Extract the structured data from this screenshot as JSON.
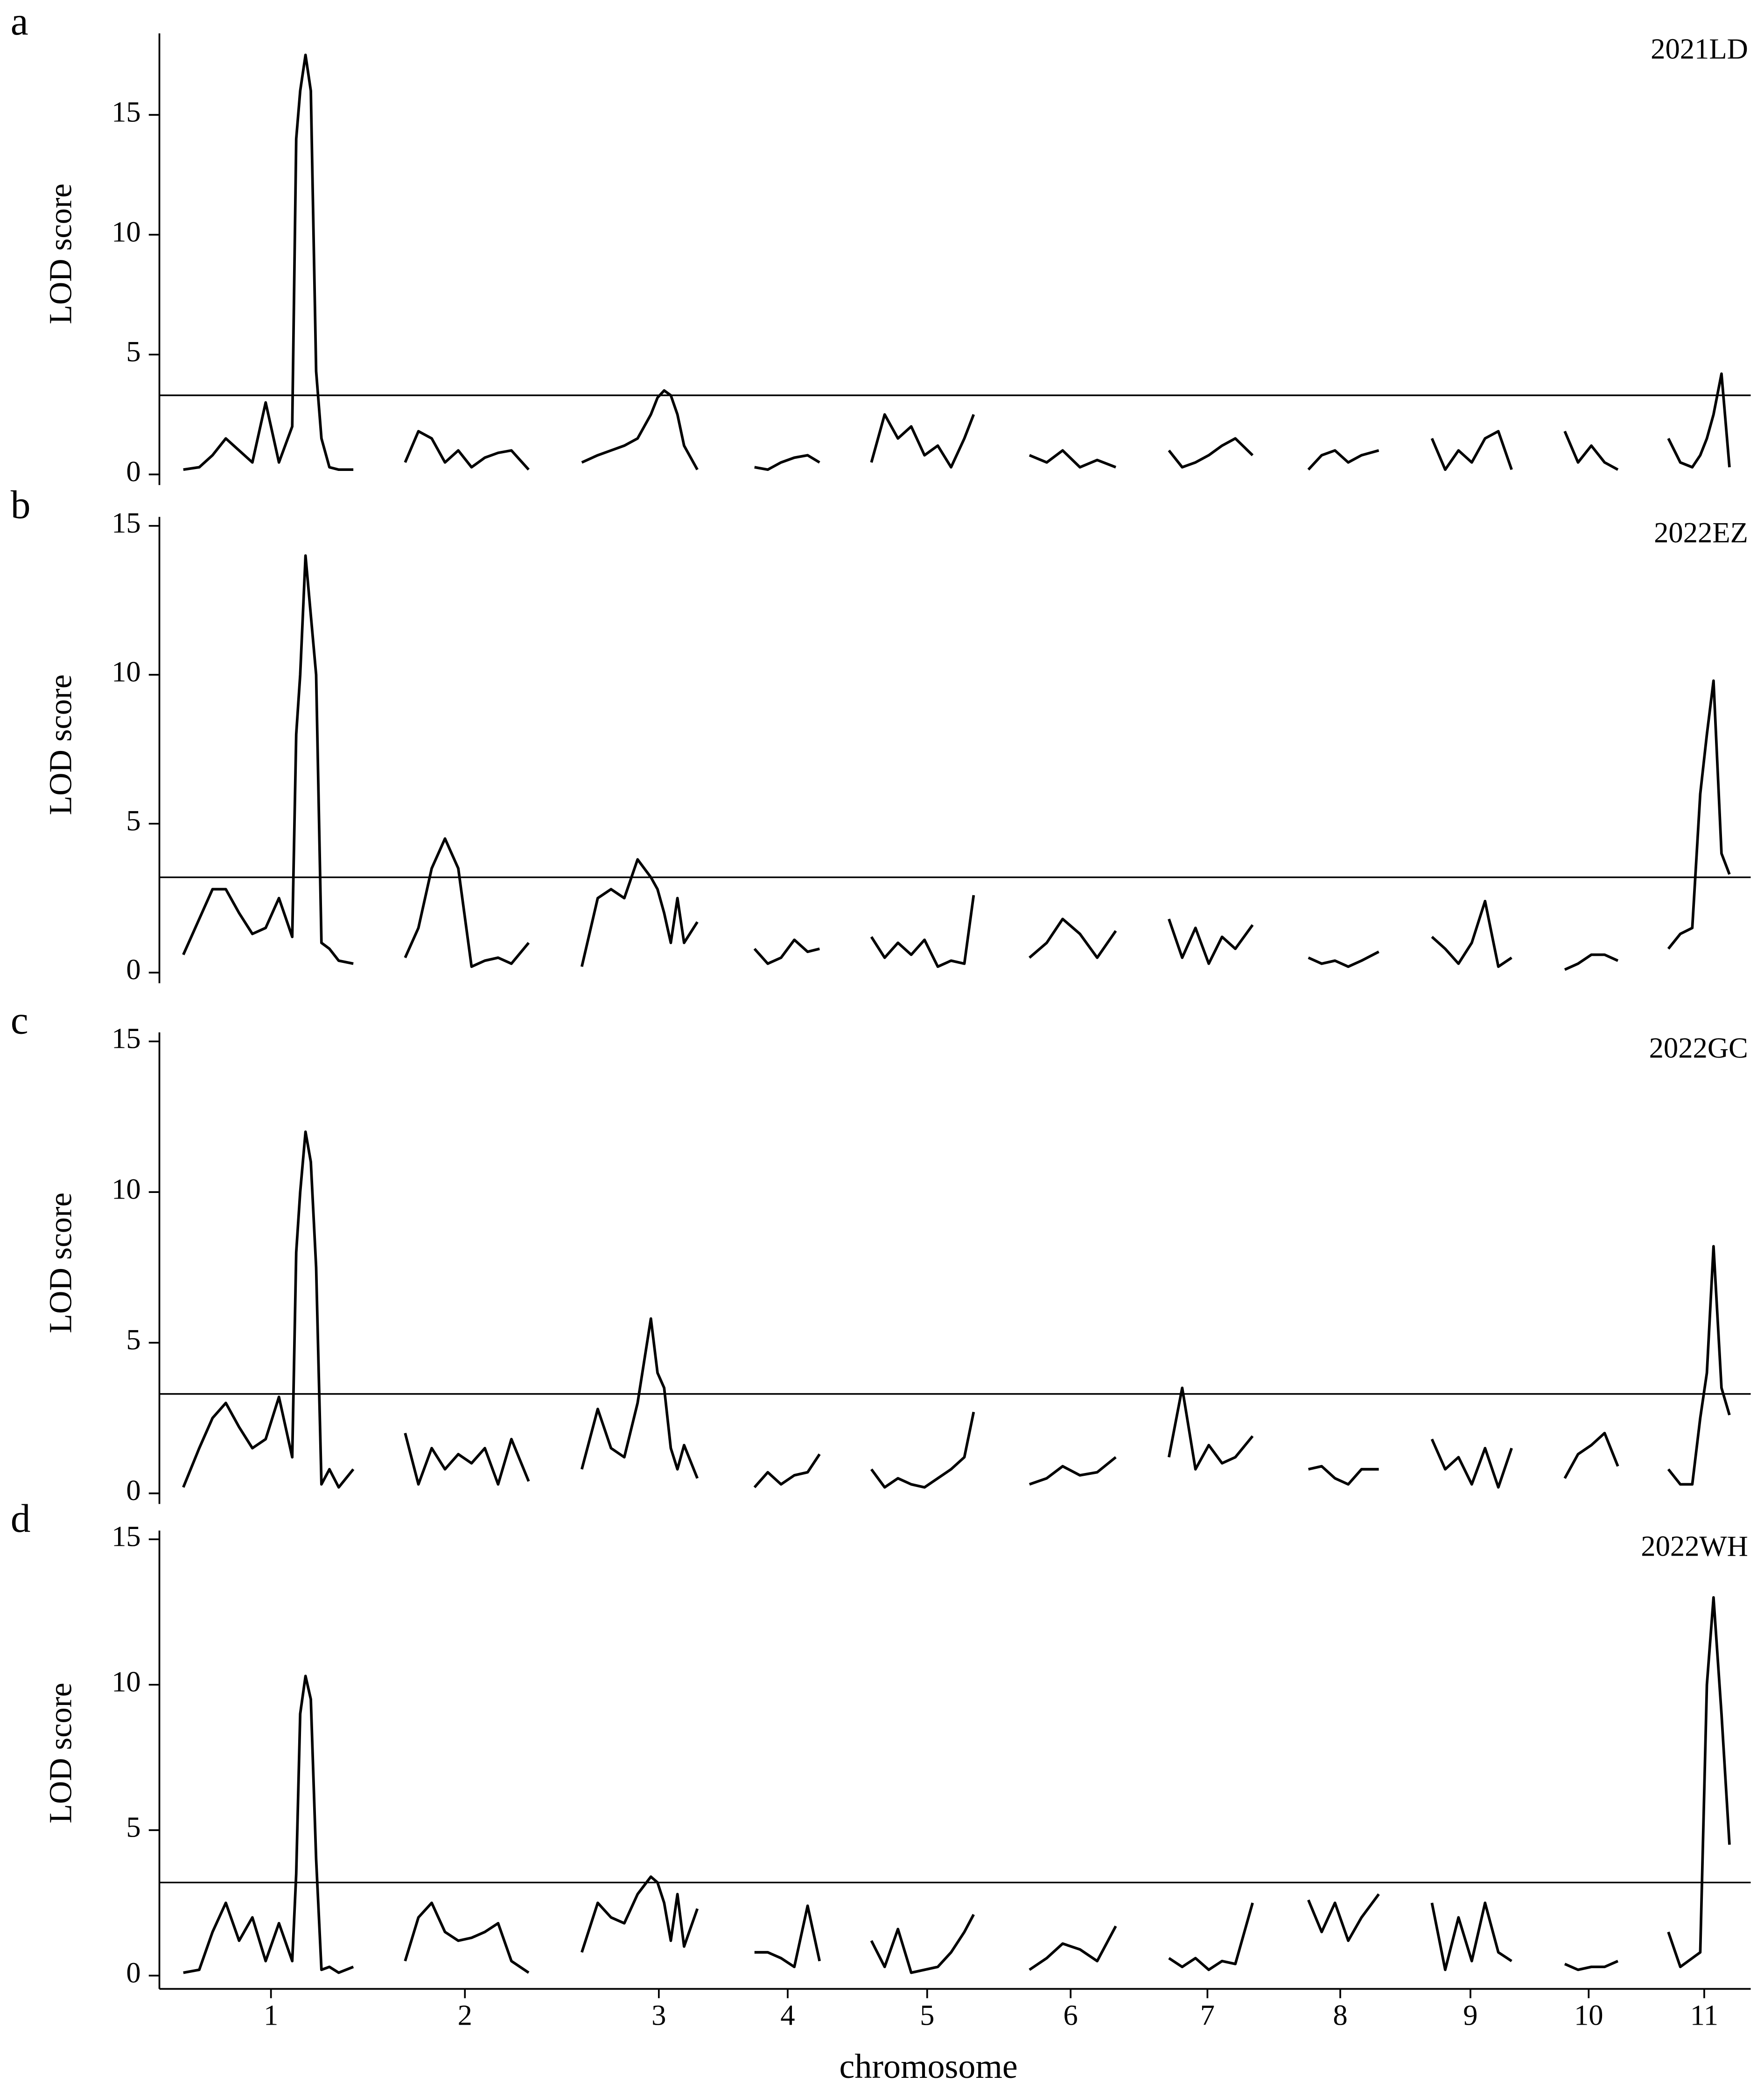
{
  "chart_data": [
    {
      "type": "line",
      "panel_label": "a",
      "title": "2021LD",
      "ylabel": "LOD score",
      "color": "#000000",
      "x": [
        1.8,
        3,
        4,
        5,
        6,
        7,
        8,
        9,
        10,
        10.3,
        10.6,
        11,
        11.4,
        11.8,
        12.2,
        12.8,
        13.5,
        14.6,
        null,
        18.5,
        19.5,
        20.5,
        21.5,
        22.5,
        23.5,
        24.5,
        25.5,
        26.5,
        27.8,
        null,
        31.8,
        33,
        34,
        35,
        36,
        37,
        37.5,
        38,
        38.5,
        39,
        39.5,
        40.5,
        null,
        44.8,
        45.8,
        46.8,
        47.8,
        48.8,
        49.7,
        null,
        53.6,
        54.6,
        55.6,
        56.6,
        57.6,
        58.6,
        59.6,
        60.6,
        61.3,
        null,
        65.5,
        66.8,
        68,
        69.3,
        70.6,
        72,
        null,
        76,
        77,
        78,
        79,
        80,
        81,
        82.3,
        null,
        86.5,
        87.5,
        88.5,
        89.5,
        90.5,
        91.8,
        null,
        95.8,
        96.8,
        97.8,
        98.8,
        99.8,
        100.8,
        101.8,
        null,
        105.8,
        106.8,
        107.8,
        108.8,
        109.8,
        null,
        113.6,
        114.5,
        115.4,
        116,
        116.5,
        117,
        117.6,
        118.2
      ],
      "values": [
        0.2,
        0.3,
        0.8,
        1.5,
        1,
        0.5,
        3,
        0.5,
        2,
        14,
        16,
        17.5,
        16,
        4.3,
        1.5,
        0.3,
        0.2,
        0.2,
        null,
        0.5,
        1.8,
        1.5,
        0.5,
        1,
        0.3,
        0.7,
        0.9,
        1,
        0.2,
        null,
        0.5,
        0.8,
        1,
        1.2,
        1.5,
        2.5,
        3.2,
        3.5,
        3.3,
        2.5,
        1.2,
        0.2,
        null,
        0.3,
        0.2,
        0.5,
        0.7,
        0.8,
        0.5,
        null,
        0.5,
        2.5,
        1.5,
        2,
        0.8,
        1.2,
        0.3,
        1.5,
        2.5,
        null,
        0.8,
        0.5,
        1,
        0.3,
        0.6,
        0.3,
        null,
        1,
        0.3,
        0.5,
        0.8,
        1.2,
        1.5,
        0.8,
        null,
        0.2,
        0.8,
        1,
        0.5,
        0.8,
        1,
        null,
        1.5,
        0.2,
        1,
        0.5,
        1.5,
        1.8,
        0.2,
        null,
        1.8,
        0.5,
        1.2,
        0.5,
        0.2,
        null,
        1.5,
        0.5,
        0.3,
        0.8,
        1.5,
        2.5,
        4.2,
        0.3
      ],
      "threshold": 3.3,
      "xlim": [
        0,
        119.8
      ],
      "ylim": [
        0,
        18.4
      ],
      "yticks": [
        0,
        5,
        10,
        15
      ]
    },
    {
      "type": "line",
      "panel_label": "b",
      "title": "2022EZ",
      "ylabel": "LOD score",
      "color": "#000000",
      "x": [
        1.8,
        3,
        4,
        5,
        6,
        7,
        8,
        9,
        10,
        10.3,
        10.6,
        11,
        11.4,
        11.8,
        12.2,
        12.8,
        13.5,
        14.6,
        null,
        18.5,
        19.5,
        20.5,
        21.5,
        22.5,
        23.5,
        24.5,
        25.5,
        26.5,
        27.8,
        null,
        31.8,
        33,
        34,
        35,
        36,
        37,
        37.5,
        38,
        38.5,
        39,
        39.5,
        40.5,
        null,
        44.8,
        45.8,
        46.8,
        47.8,
        48.8,
        49.7,
        null,
        53.6,
        54.6,
        55.6,
        56.6,
        57.6,
        58.6,
        59.6,
        60.6,
        61.3,
        null,
        65.5,
        66.8,
        68,
        69.3,
        70.6,
        72,
        null,
        76,
        77,
        78,
        79,
        80,
        81,
        82.3,
        null,
        86.5,
        87.5,
        88.5,
        89.5,
        90.5,
        91.8,
        null,
        95.8,
        96.8,
        97.8,
        98.8,
        99.8,
        100.8,
        101.8,
        null,
        105.8,
        106.8,
        107.8,
        108.8,
        109.8,
        null,
        113.6,
        114.5,
        115.4,
        116,
        116.5,
        117,
        117.6,
        118.2
      ],
      "values": [
        0.6,
        1.8,
        2.8,
        2.8,
        2,
        1.3,
        1.5,
        2.5,
        1.2,
        8,
        10,
        14,
        12,
        10,
        1,
        0.8,
        0.4,
        0.3,
        null,
        0.5,
        1.5,
        3.5,
        4.5,
        3.5,
        0.2,
        0.4,
        0.5,
        0.3,
        1,
        null,
        0.2,
        2.5,
        2.8,
        2.5,
        3.8,
        3.2,
        2.8,
        2,
        1,
        2.5,
        1,
        1.7,
        null,
        0.8,
        0.3,
        0.5,
        1.1,
        0.7,
        0.8,
        null,
        1.2,
        0.5,
        1,
        0.6,
        1.1,
        0.2,
        0.4,
        0.3,
        2.6,
        null,
        0.5,
        1,
        1.8,
        1.3,
        0.5,
        1.4,
        null,
        1.8,
        0.5,
        1.5,
        0.3,
        1.2,
        0.8,
        1.6,
        null,
        0.5,
        0.3,
        0.4,
        0.2,
        0.4,
        0.7,
        null,
        1.2,
        0.8,
        0.3,
        1,
        2.4,
        0.2,
        0.5,
        null,
        0.1,
        0.3,
        0.6,
        0.6,
        0.4,
        null,
        0.8,
        1.3,
        1.5,
        6,
        8,
        9.8,
        4,
        3.3
      ],
      "threshold": 3.2,
      "xlim": [
        0,
        119.8
      ],
      "ylim": [
        0,
        15.3
      ],
      "yticks": [
        0,
        5,
        10,
        15
      ]
    },
    {
      "type": "line",
      "panel_label": "c",
      "title": "2022GC",
      "ylabel": "LOD score",
      "color": "#000000",
      "x": [
        1.8,
        3,
        4,
        5,
        6,
        7,
        8,
        9,
        10,
        10.3,
        10.6,
        11,
        11.4,
        11.8,
        12.2,
        12.8,
        13.5,
        14.6,
        null,
        18.5,
        19.5,
        20.5,
        21.5,
        22.5,
        23.5,
        24.5,
        25.5,
        26.5,
        27.8,
        null,
        31.8,
        33,
        34,
        35,
        36,
        37,
        37.5,
        38,
        38.5,
        39,
        39.5,
        40.5,
        null,
        44.8,
        45.8,
        46.8,
        47.8,
        48.8,
        49.7,
        null,
        53.6,
        54.6,
        55.6,
        56.6,
        57.6,
        58.6,
        59.6,
        60.6,
        61.3,
        null,
        65.5,
        66.8,
        68,
        69.3,
        70.6,
        72,
        null,
        76,
        77,
        78,
        79,
        80,
        81,
        82.3,
        null,
        86.5,
        87.5,
        88.5,
        89.5,
        90.5,
        91.8,
        null,
        95.8,
        96.8,
        97.8,
        98.8,
        99.8,
        100.8,
        101.8,
        null,
        105.8,
        106.8,
        107.8,
        108.8,
        109.8,
        null,
        113.6,
        114.5,
        115.4,
        116,
        116.5,
        117,
        117.6,
        118.2
      ],
      "values": [
        0.2,
        1.5,
        2.5,
        3,
        2.2,
        1.5,
        1.8,
        3.2,
        1.2,
        8,
        10,
        12,
        11,
        7.5,
        0.3,
        0.8,
        0.2,
        0.8,
        null,
        2,
        0.3,
        1.5,
        0.8,
        1.3,
        1,
        1.5,
        0.3,
        1.8,
        0.4,
        null,
        0.8,
        2.8,
        1.5,
        1.2,
        3,
        5.8,
        4,
        3.5,
        1.5,
        0.8,
        1.6,
        0.5,
        null,
        0.2,
        0.7,
        0.3,
        0.6,
        0.7,
        1.3,
        null,
        0.8,
        0.2,
        0.5,
        0.3,
        0.2,
        0.5,
        0.8,
        1.2,
        2.7,
        null,
        0.3,
        0.5,
        0.9,
        0.6,
        0.7,
        1.2,
        null,
        1.2,
        3.5,
        0.8,
        1.6,
        1,
        1.2,
        1.9,
        null,
        0.8,
        0.9,
        0.5,
        0.3,
        0.8,
        0.8,
        null,
        1.8,
        0.8,
        1.2,
        0.3,
        1.5,
        0.2,
        1.5,
        null,
        0.5,
        1.3,
        1.6,
        2,
        0.9,
        null,
        0.8,
        0.3,
        0.3,
        2.5,
        4,
        8.2,
        3.5,
        2.6
      ],
      "threshold": 3.3,
      "xlim": [
        0,
        119.8
      ],
      "ylim": [
        0,
        15.3
      ],
      "yticks": [
        0,
        5,
        10,
        15
      ]
    },
    {
      "type": "line",
      "panel_label": "d",
      "title": "2022WH",
      "ylabel": "LOD score",
      "xlabel": "chromosome",
      "color": "#000000",
      "x": [
        1.8,
        3,
        4,
        5,
        6,
        7,
        8,
        9,
        10,
        10.3,
        10.6,
        11,
        11.4,
        11.8,
        12.2,
        12.8,
        13.5,
        14.6,
        null,
        18.5,
        19.5,
        20.5,
        21.5,
        22.5,
        23.5,
        24.5,
        25.5,
        26.5,
        27.8,
        null,
        31.8,
        33,
        34,
        35,
        36,
        37,
        37.5,
        38,
        38.5,
        39,
        39.5,
        40.5,
        null,
        44.8,
        45.8,
        46.8,
        47.8,
        48.8,
        49.7,
        null,
        53.6,
        54.6,
        55.6,
        56.6,
        57.6,
        58.6,
        59.6,
        60.6,
        61.3,
        null,
        65.5,
        66.8,
        68,
        69.3,
        70.6,
        72,
        null,
        76,
        77,
        78,
        79,
        80,
        81,
        82.3,
        null,
        86.5,
        87.5,
        88.5,
        89.5,
        90.5,
        91.8,
        null,
        95.8,
        96.8,
        97.8,
        98.8,
        99.8,
        100.8,
        101.8,
        null,
        105.8,
        106.8,
        107.8,
        108.8,
        109.8,
        null,
        113.6,
        114.5,
        115.4,
        116,
        116.5,
        117,
        117.6,
        118.2
      ],
      "values": [
        0.1,
        0.2,
        1.5,
        2.5,
        1.2,
        2,
        0.5,
        1.8,
        0.5,
        3.5,
        9,
        10.3,
        9.5,
        4,
        0.2,
        0.3,
        0.1,
        0.3,
        null,
        0.5,
        2,
        2.5,
        1.5,
        1.2,
        1.3,
        1.5,
        1.8,
        0.5,
        0.1,
        null,
        0.8,
        2.5,
        2,
        1.8,
        2.8,
        3.4,
        3.2,
        2.5,
        1.2,
        2.8,
        1,
        2.3,
        null,
        0.8,
        0.8,
        0.6,
        0.3,
        2.4,
        0.5,
        null,
        1.2,
        0.3,
        1.6,
        0.1,
        0.2,
        0.3,
        0.8,
        1.5,
        2.1,
        null,
        0.2,
        0.6,
        1.1,
        0.9,
        0.5,
        1.7,
        null,
        0.6,
        0.3,
        0.6,
        0.2,
        0.5,
        0.4,
        2.5,
        null,
        2.6,
        1.5,
        2.5,
        1.2,
        2,
        2.8,
        null,
        2.5,
        0.2,
        2,
        0.5,
        2.5,
        0.8,
        0.5,
        null,
        0.4,
        0.2,
        0.3,
        0.3,
        0.5,
        null,
        1.5,
        0.3,
        0.6,
        0.8,
        10,
        13,
        9,
        4.5
      ],
      "threshold": 3.2,
      "xlim": [
        0,
        119.8
      ],
      "ylim": [
        0,
        15.3
      ],
      "yticks": [
        0,
        5,
        10,
        15
      ],
      "xticks": [
        {
          "value": 8.4,
          "label": "1"
        },
        {
          "value": 23,
          "label": "2"
        },
        {
          "value": 37.6,
          "label": "3"
        },
        {
          "value": 47.3,
          "label": "4"
        },
        {
          "value": 57.8,
          "label": "5"
        },
        {
          "value": 68.6,
          "label": "6"
        },
        {
          "value": 78.9,
          "label": "7"
        },
        {
          "value": 88.9,
          "label": "8"
        },
        {
          "value": 98.7,
          "label": "9"
        },
        {
          "value": 107.6,
          "label": "10"
        },
        {
          "value": 116.3,
          "label": "11"
        }
      ]
    }
  ]
}
